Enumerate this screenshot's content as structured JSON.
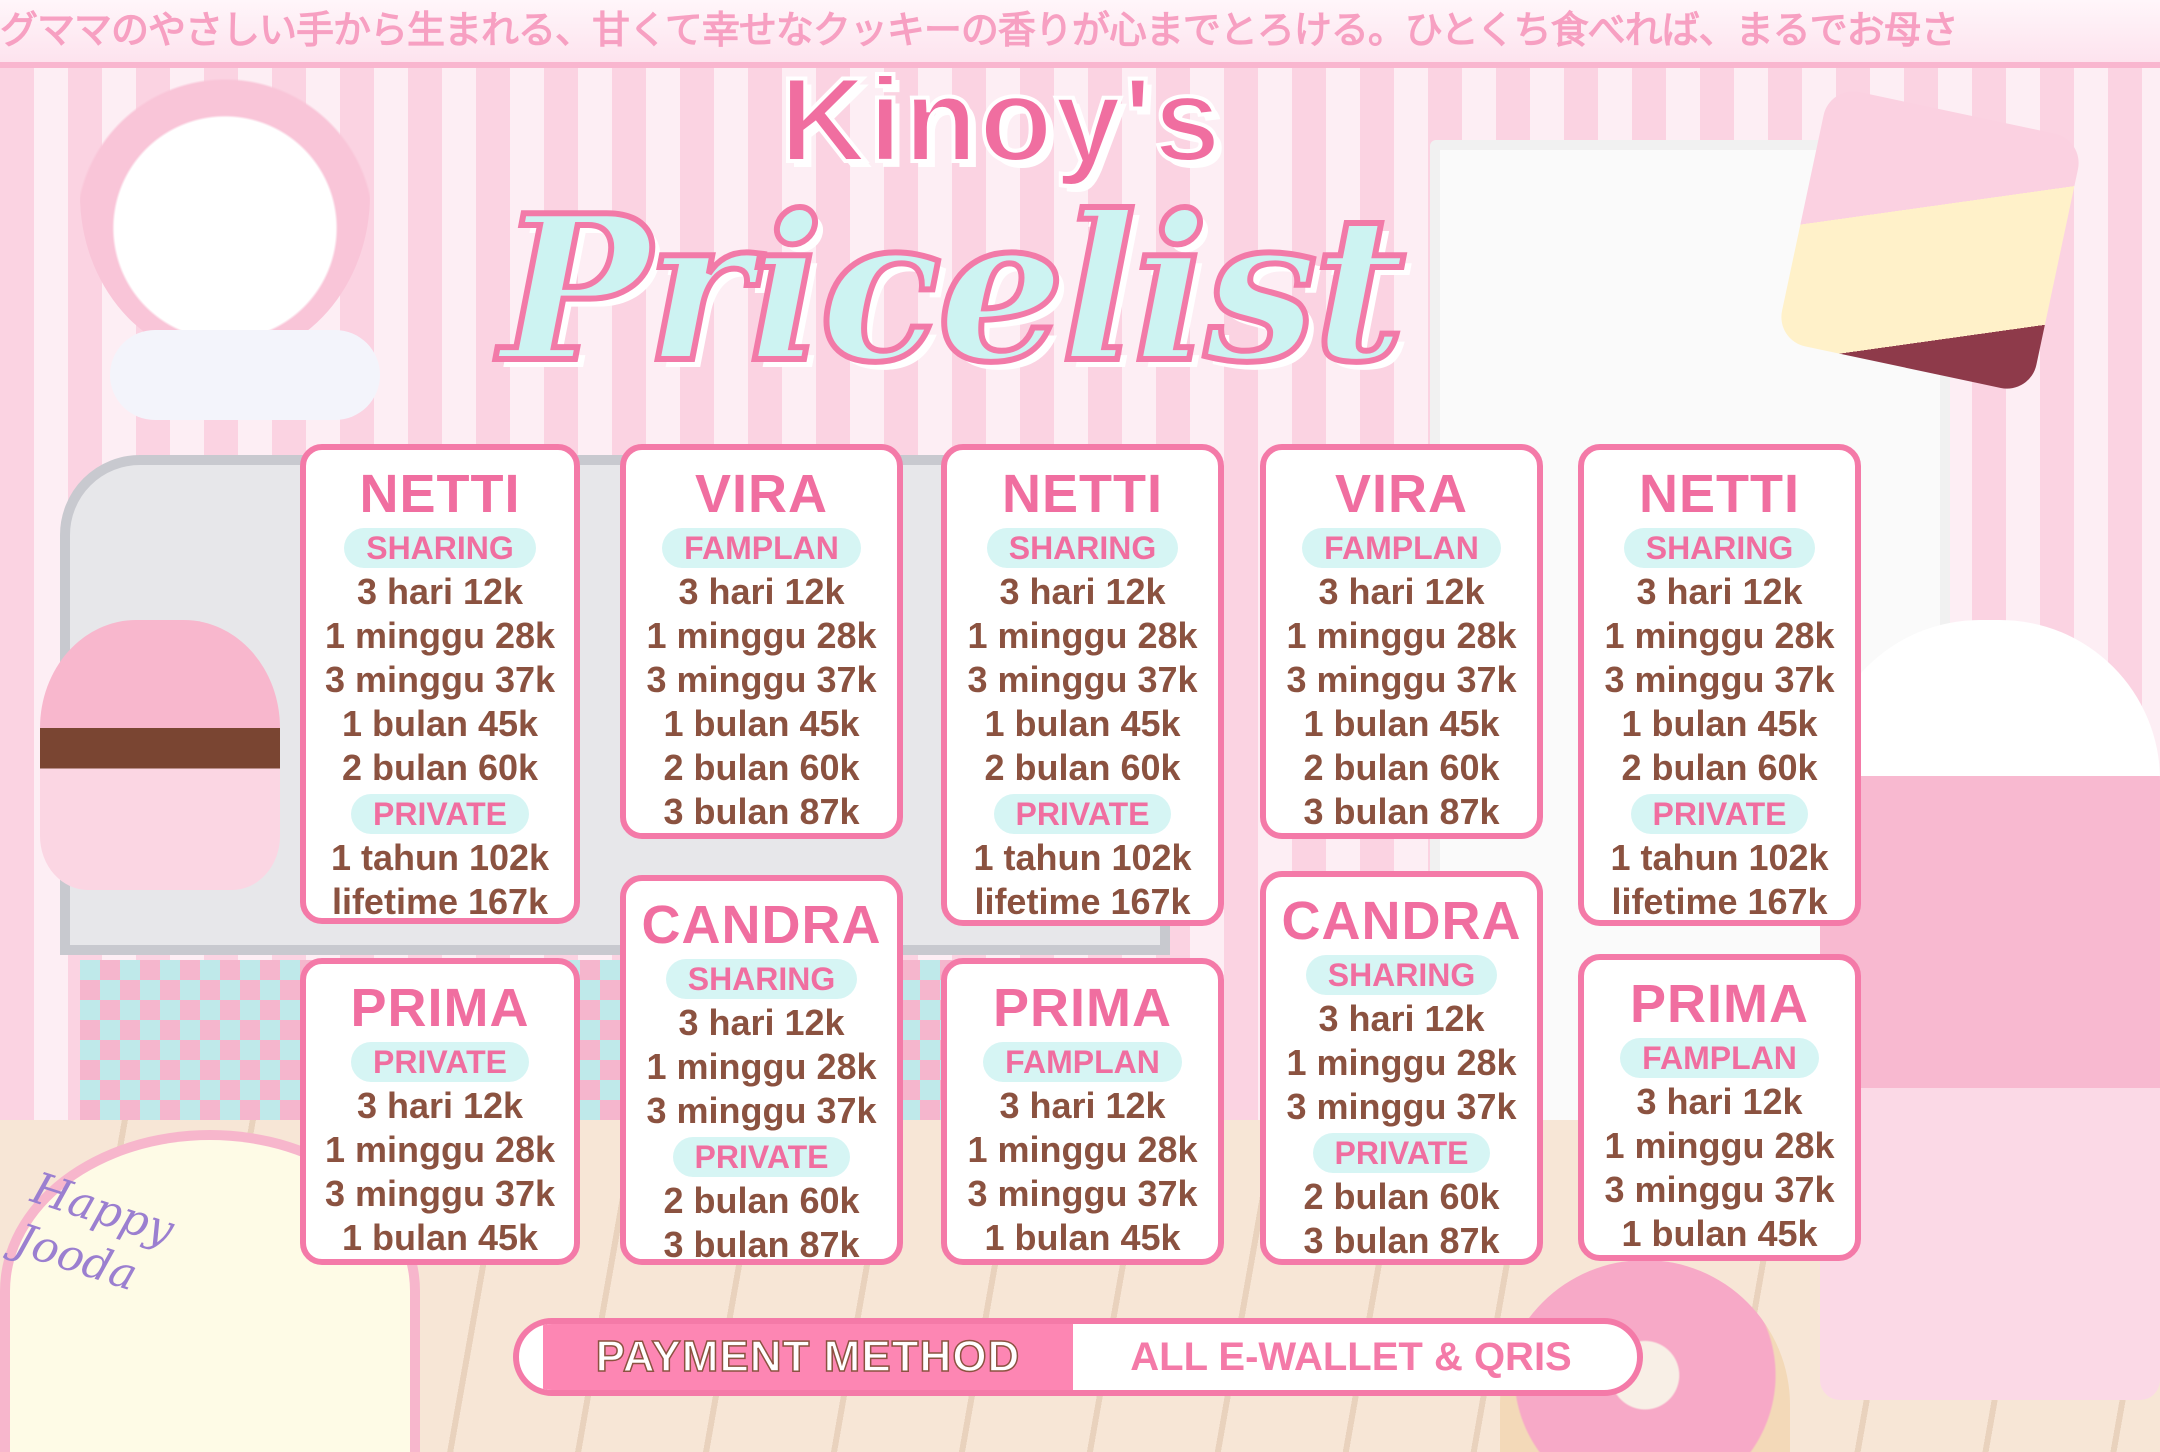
{
  "banner_text": "グママのやさしい手から生まれる、甘くて幸せなクッキーの香りが心までとろける。ひとくち食べれば、まるでお母さ",
  "title": {
    "brand": "Kinoy's",
    "main": "Pricelist"
  },
  "colors": {
    "accent_pink": "#f06ea0",
    "text_brown": "#8b5240",
    "label_bg": "#d6f5f4",
    "border": "#f47aa8"
  },
  "cards": [
    {
      "name": "NETTI",
      "sections": [
        {
          "label": "SHARING",
          "items": [
            "3 hari 12k",
            "1 minggu 28k",
            "3 minggu 37k",
            "1 bulan 45k",
            "2 bulan 60k"
          ]
        },
        {
          "label": "PRIVATE",
          "items": [
            "1 tahun 102k",
            "lifetime 167k"
          ]
        }
      ]
    },
    {
      "name": "VIRA",
      "sections": [
        {
          "label": "FAMPLAN",
          "items": [
            "3 hari 12k",
            "1 minggu 28k",
            "3 minggu 37k",
            "1 bulan 45k",
            "2 bulan 60k",
            "3 bulan 87k"
          ]
        }
      ]
    },
    {
      "name": "NETTI",
      "sections": [
        {
          "label": "SHARING",
          "items": [
            "3 hari 12k",
            "1 minggu 28k",
            "3 minggu 37k",
            "1 bulan 45k",
            "2 bulan 60k"
          ]
        },
        {
          "label": "PRIVATE",
          "items": [
            "1 tahun 102k",
            "lifetime 167k"
          ]
        }
      ]
    },
    {
      "name": "VIRA",
      "sections": [
        {
          "label": "FAMPLAN",
          "items": [
            "3 hari 12k",
            "1 minggu 28k",
            "3 minggu 37k",
            "1 bulan 45k",
            "2 bulan 60k",
            "3 bulan 87k"
          ]
        }
      ]
    },
    {
      "name": "NETTI",
      "sections": [
        {
          "label": "SHARING",
          "items": [
            "3 hari 12k",
            "1 minggu 28k",
            "3 minggu 37k",
            "1 bulan 45k",
            "2 bulan 60k"
          ]
        },
        {
          "label": "PRIVATE",
          "items": [
            "1 tahun 102k",
            "lifetime 167k"
          ]
        }
      ]
    },
    {
      "name": "PRIMA",
      "sections": [
        {
          "label": "PRIVATE",
          "items": [
            "3 hari 12k",
            "1 minggu 28k",
            "3 minggu 37k",
            "1 bulan 45k"
          ]
        }
      ]
    },
    {
      "name": "CANDRA",
      "sections": [
        {
          "label": "SHARING",
          "items": [
            "3 hari 12k",
            "1 minggu 28k",
            "3 minggu 37k"
          ]
        },
        {
          "label": "PRIVATE",
          "items": [
            "2 bulan 60k",
            "3 bulan 87k"
          ]
        }
      ]
    },
    {
      "name": "PRIMA",
      "sections": [
        {
          "label": "FAMPLAN",
          "items": [
            "3 hari 12k",
            "1 minggu 28k",
            "3 minggu 37k",
            "1 bulan 45k"
          ]
        }
      ]
    },
    {
      "name": "CANDRA",
      "sections": [
        {
          "label": "SHARING",
          "items": [
            "3 hari 12k",
            "1 minggu 28k",
            "3 minggu 37k"
          ]
        },
        {
          "label": "PRIVATE",
          "items": [
            "2 bulan 60k",
            "3 bulan 87k"
          ]
        }
      ]
    },
    {
      "name": "PRIMA",
      "sections": [
        {
          "label": "FAMPLAN",
          "items": [
            "3 hari 12k",
            "1 minggu 28k",
            "3 minggu 37k",
            "1 bulan 45k"
          ]
        }
      ]
    }
  ],
  "payment": {
    "label": "PAYMENT METHOD",
    "value": "ALL E-WALLET & QRIS"
  },
  "cake_text": "Happy Jooda"
}
